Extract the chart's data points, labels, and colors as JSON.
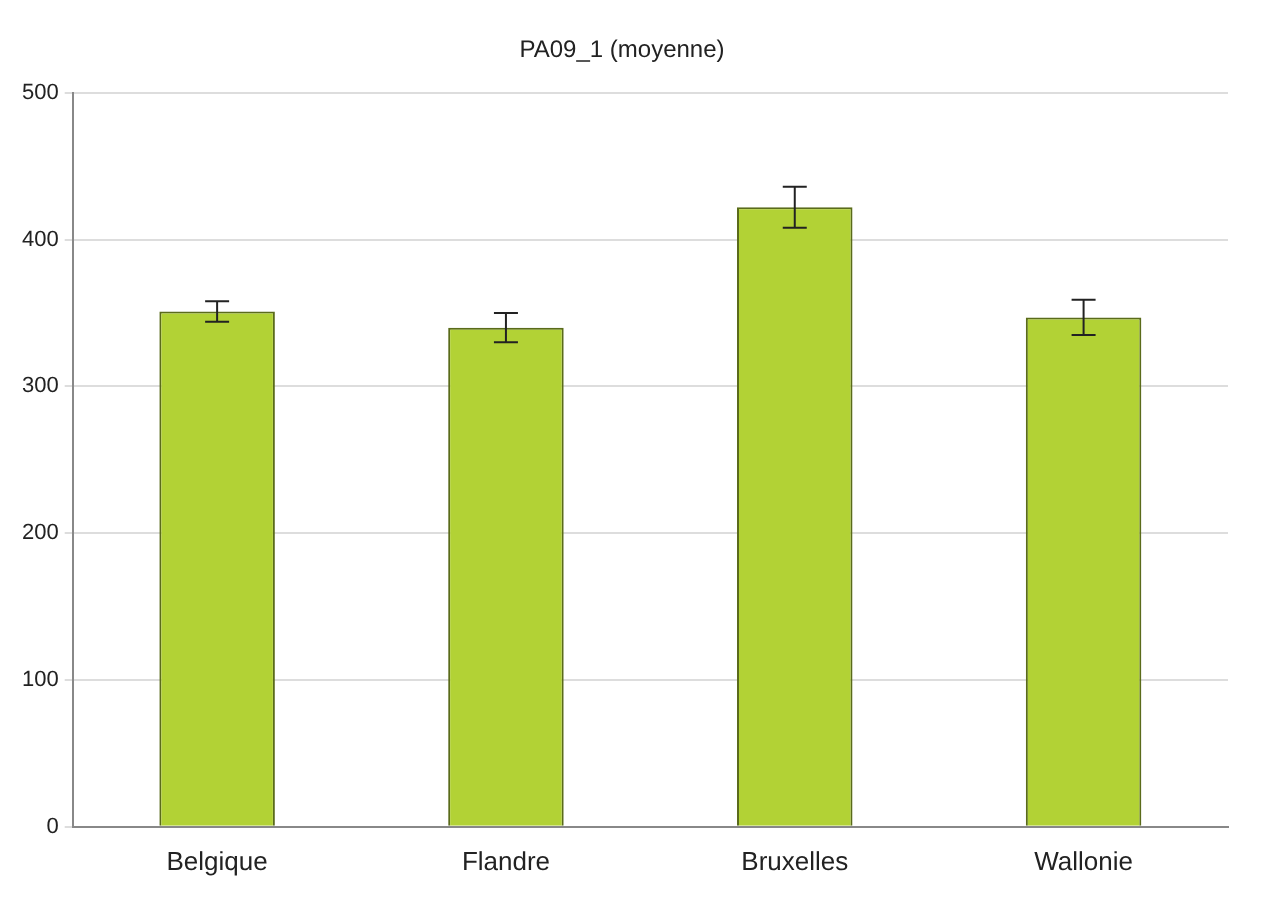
{
  "chart_data": {
    "type": "bar",
    "title": "PA09_1 (moyenne)",
    "categories": [
      "Belgique",
      "Flandre",
      "Bruxelles",
      "Wallonie"
    ],
    "values": [
      351,
      340,
      422,
      347
    ],
    "errors": [
      7,
      10,
      14,
      12
    ],
    "color": "#b2d235",
    "ylim": [
      0,
      500
    ],
    "yticks": [
      0,
      100,
      200,
      300,
      400,
      500
    ],
    "grid": "y"
  }
}
